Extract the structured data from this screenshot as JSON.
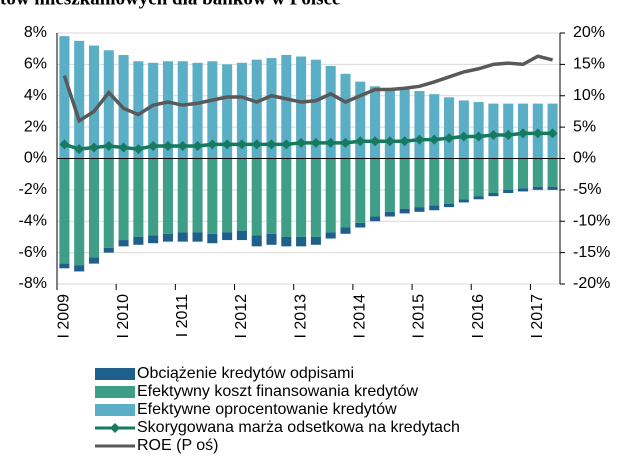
{
  "chart_data": {
    "type": "bar",
    "title": "tów mieszkaniowych dla banków w Polsce",
    "categories": [
      "I 2009",
      null,
      null,
      null,
      "I 2010",
      null,
      null,
      null,
      "I 2011",
      null,
      null,
      null,
      "I 2012",
      null,
      null,
      null,
      "I 2013",
      null,
      null,
      null,
      "I 2014",
      null,
      null,
      null,
      "I 2015",
      null,
      null,
      null,
      "I 2016",
      null,
      null,
      null,
      "I 2017",
      null
    ],
    "series": [
      {
        "name": "Obciążenie kredytów odpisami",
        "type": "bar",
        "color": "#1f5f8b",
        "values": [
          -0.3,
          -0.4,
          -0.4,
          -0.3,
          -0.4,
          -0.5,
          -0.5,
          -0.5,
          -0.6,
          -0.6,
          -0.6,
          -0.5,
          -0.6,
          -0.7,
          -0.7,
          -0.6,
          -0.6,
          -0.5,
          -0.4,
          -0.4,
          -0.3,
          -0.3,
          -0.3,
          -0.3,
          -0.3,
          -0.3,
          -0.2,
          -0.2,
          -0.2,
          -0.2,
          -0.2,
          -0.2,
          -0.2,
          -0.2
        ]
      },
      {
        "name": "Efektywny koszt finansowania kredytów",
        "type": "bar",
        "color": "#3f9f86",
        "values": [
          -6.7,
          -6.8,
          -6.3,
          -5.7,
          -5.2,
          -5.0,
          -4.9,
          -4.8,
          -4.7,
          -4.7,
          -4.8,
          -4.7,
          -4.6,
          -4.9,
          -4.8,
          -5.0,
          -5.0,
          -5.0,
          -4.7,
          -4.4,
          -4.1,
          -3.7,
          -3.4,
          -3.2,
          -3.1,
          -3.0,
          -2.9,
          -2.6,
          -2.4,
          -2.2,
          -2.0,
          -1.9,
          -1.8,
          -1.8
        ]
      },
      {
        "name": "Efektywne oprocentowanie kredytów",
        "type": "bar",
        "color": "#5aafc6",
        "values": [
          7.8,
          7.5,
          7.2,
          6.9,
          6.6,
          6.2,
          6.1,
          6.2,
          6.2,
          6.1,
          6.2,
          6.0,
          6.1,
          6.3,
          6.4,
          6.6,
          6.5,
          6.3,
          5.9,
          5.4,
          4.9,
          4.6,
          4.5,
          4.4,
          4.3,
          4.1,
          3.9,
          3.7,
          3.6,
          3.5,
          3.5,
          3.5,
          3.5,
          3.5
        ]
      },
      {
        "name": "Skorygowana marża odsetkowa na kredytach",
        "type": "line",
        "marker": "diamond",
        "color": "#17795d",
        "values": [
          0.9,
          0.6,
          0.7,
          0.8,
          0.7,
          0.6,
          0.8,
          0.8,
          0.8,
          0.8,
          0.9,
          0.9,
          0.9,
          0.9,
          0.9,
          0.9,
          1.0,
          1.0,
          1.0,
          1.0,
          1.1,
          1.1,
          1.1,
          1.1,
          1.2,
          1.2,
          1.3,
          1.4,
          1.4,
          1.5,
          1.5,
          1.6,
          1.6,
          1.6
        ]
      },
      {
        "name": "ROE (P oś)",
        "type": "line",
        "axis": "y2",
        "color": "#595959",
        "values": [
          13.2,
          6,
          7.5,
          10.5,
          8,
          7,
          8.5,
          9,
          8.5,
          8.8,
          9.3,
          9.8,
          9.8,
          9,
          10,
          9.5,
          9,
          9.2,
          10.3,
          9,
          10,
          11,
          11,
          11.2,
          11.5,
          12.2,
          13,
          13.8,
          14.3,
          15,
          15.2,
          15,
          16.3,
          15.7
        ]
      }
    ],
    "ylim": [
      -8,
      8
    ],
    "yticks": [
      {
        "value": -8,
        "label": "-8%"
      },
      {
        "value": -6,
        "label": "-6%"
      },
      {
        "value": -4,
        "label": "-4%"
      },
      {
        "value": -2,
        "label": "-2%"
      },
      {
        "value": 0,
        "label": "0%"
      },
      {
        "value": 2,
        "label": "2%"
      },
      {
        "value": 4,
        "label": "4%"
      },
      {
        "value": 6,
        "label": "6%"
      },
      {
        "value": 8,
        "label": "8%"
      }
    ],
    "y2lim": [
      -20,
      20
    ],
    "y2ticks": [
      {
        "value": -20,
        "label": "-20%"
      },
      {
        "value": -15,
        "label": "-15%"
      },
      {
        "value": -10,
        "label": "-10%"
      },
      {
        "value": -5,
        "label": "-5%"
      },
      {
        "value": 0,
        "label": "0%"
      },
      {
        "value": 5,
        "label": "5%"
      },
      {
        "value": 10,
        "label": "10%"
      },
      {
        "value": 15,
        "label": "15%"
      },
      {
        "value": 20,
        "label": "20%"
      }
    ],
    "grid": true,
    "legend": "bottom"
  }
}
